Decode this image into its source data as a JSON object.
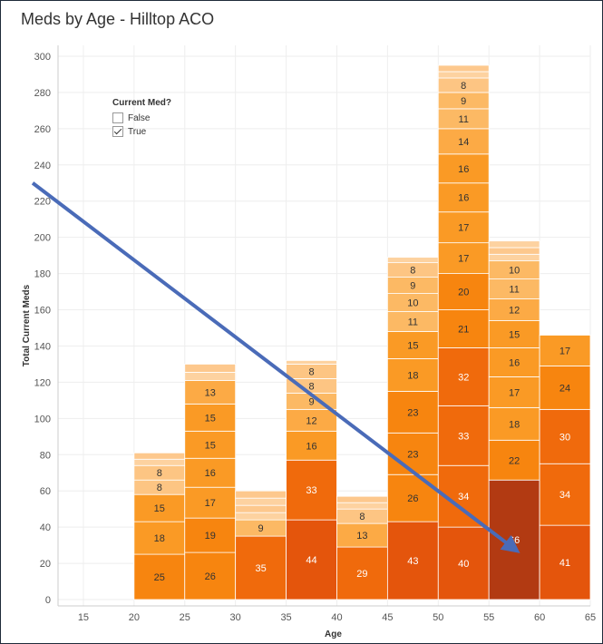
{
  "chart_data": {
    "type": "bar",
    "stacked": true,
    "title": "Meds by Age - Hilltop ACO",
    "xlabel": "Age",
    "ylabel": "Total Current Meds",
    "x_ticks": [
      15,
      20,
      25,
      30,
      35,
      40,
      45,
      50,
      55,
      60,
      65
    ],
    "y_ticks": [
      0,
      20,
      40,
      60,
      80,
      100,
      120,
      140,
      160,
      180,
      200,
      220,
      240,
      260,
      280,
      300
    ],
    "ylim": [
      0,
      300
    ],
    "xlim": [
      12.5,
      65
    ],
    "grid": true,
    "legend": {
      "title": "Current Med?",
      "position": "top-left",
      "entries": [
        {
          "label": "False",
          "checked": false
        },
        {
          "label": "True",
          "checked": true
        }
      ]
    },
    "bins": [
      {
        "x0": 20,
        "x1": 25,
        "total": 81,
        "segments": [
          25,
          18,
          15,
          8,
          8
        ],
        "labels": [
          "25",
          "18",
          "15",
          "8",
          "8"
        ]
      },
      {
        "x0": 25,
        "x1": 30,
        "total": 130,
        "segments": [
          26,
          19,
          17,
          16,
          15,
          15,
          13
        ],
        "labels": [
          "26",
          "19",
          "17",
          "16",
          "15",
          "15",
          "13"
        ]
      },
      {
        "x0": 30,
        "x1": 35,
        "total": 60,
        "segments": [
          35,
          9
        ],
        "labels": [
          "35",
          "9"
        ]
      },
      {
        "x0": 35,
        "x1": 40,
        "total": 132,
        "segments": [
          44,
          33,
          16,
          12,
          9,
          8,
          8
        ],
        "labels": [
          "44",
          "33",
          "16",
          "12",
          "9",
          "8",
          "8"
        ]
      },
      {
        "x0": 40,
        "x1": 45,
        "total": 57,
        "segments": [
          29,
          13,
          8
        ],
        "labels": [
          "29",
          "13",
          "8"
        ]
      },
      {
        "x0": 45,
        "x1": 50,
        "total": 189,
        "segments": [
          43,
          26,
          23,
          23,
          18,
          15,
          11,
          10,
          9,
          8
        ],
        "labels": [
          "43",
          "26",
          "23",
          "23",
          "18",
          "15",
          "11",
          "10",
          "9",
          "8"
        ]
      },
      {
        "x0": 50,
        "x1": 55,
        "total": 295,
        "segments": [
          40,
          34,
          33,
          32,
          21,
          20,
          17,
          17,
          16,
          16,
          14,
          11,
          9,
          8
        ],
        "labels": [
          "40",
          "34",
          "33",
          "32",
          "21",
          "20",
          "17",
          "17",
          "16",
          "16",
          "14",
          "11",
          "9",
          "8"
        ]
      },
      {
        "x0": 55,
        "x1": 60,
        "total": 198,
        "segments": [
          66,
          22,
          18,
          17,
          16,
          15,
          12,
          11,
          10
        ],
        "labels": [
          "66",
          "22",
          "18",
          "17",
          "16",
          "15",
          "12",
          "11",
          "10"
        ]
      },
      {
        "x0": 60,
        "x1": 65,
        "total": 146,
        "segments": [
          41,
          34,
          30,
          24,
          17
        ],
        "labels": [
          "41",
          "34",
          "30",
          "24",
          "17"
        ]
      }
    ],
    "annotation_arrow": {
      "from": [
        10,
        230
      ],
      "to": [
        57.5,
        28
      ],
      "color": "#4a6bb8"
    }
  }
}
